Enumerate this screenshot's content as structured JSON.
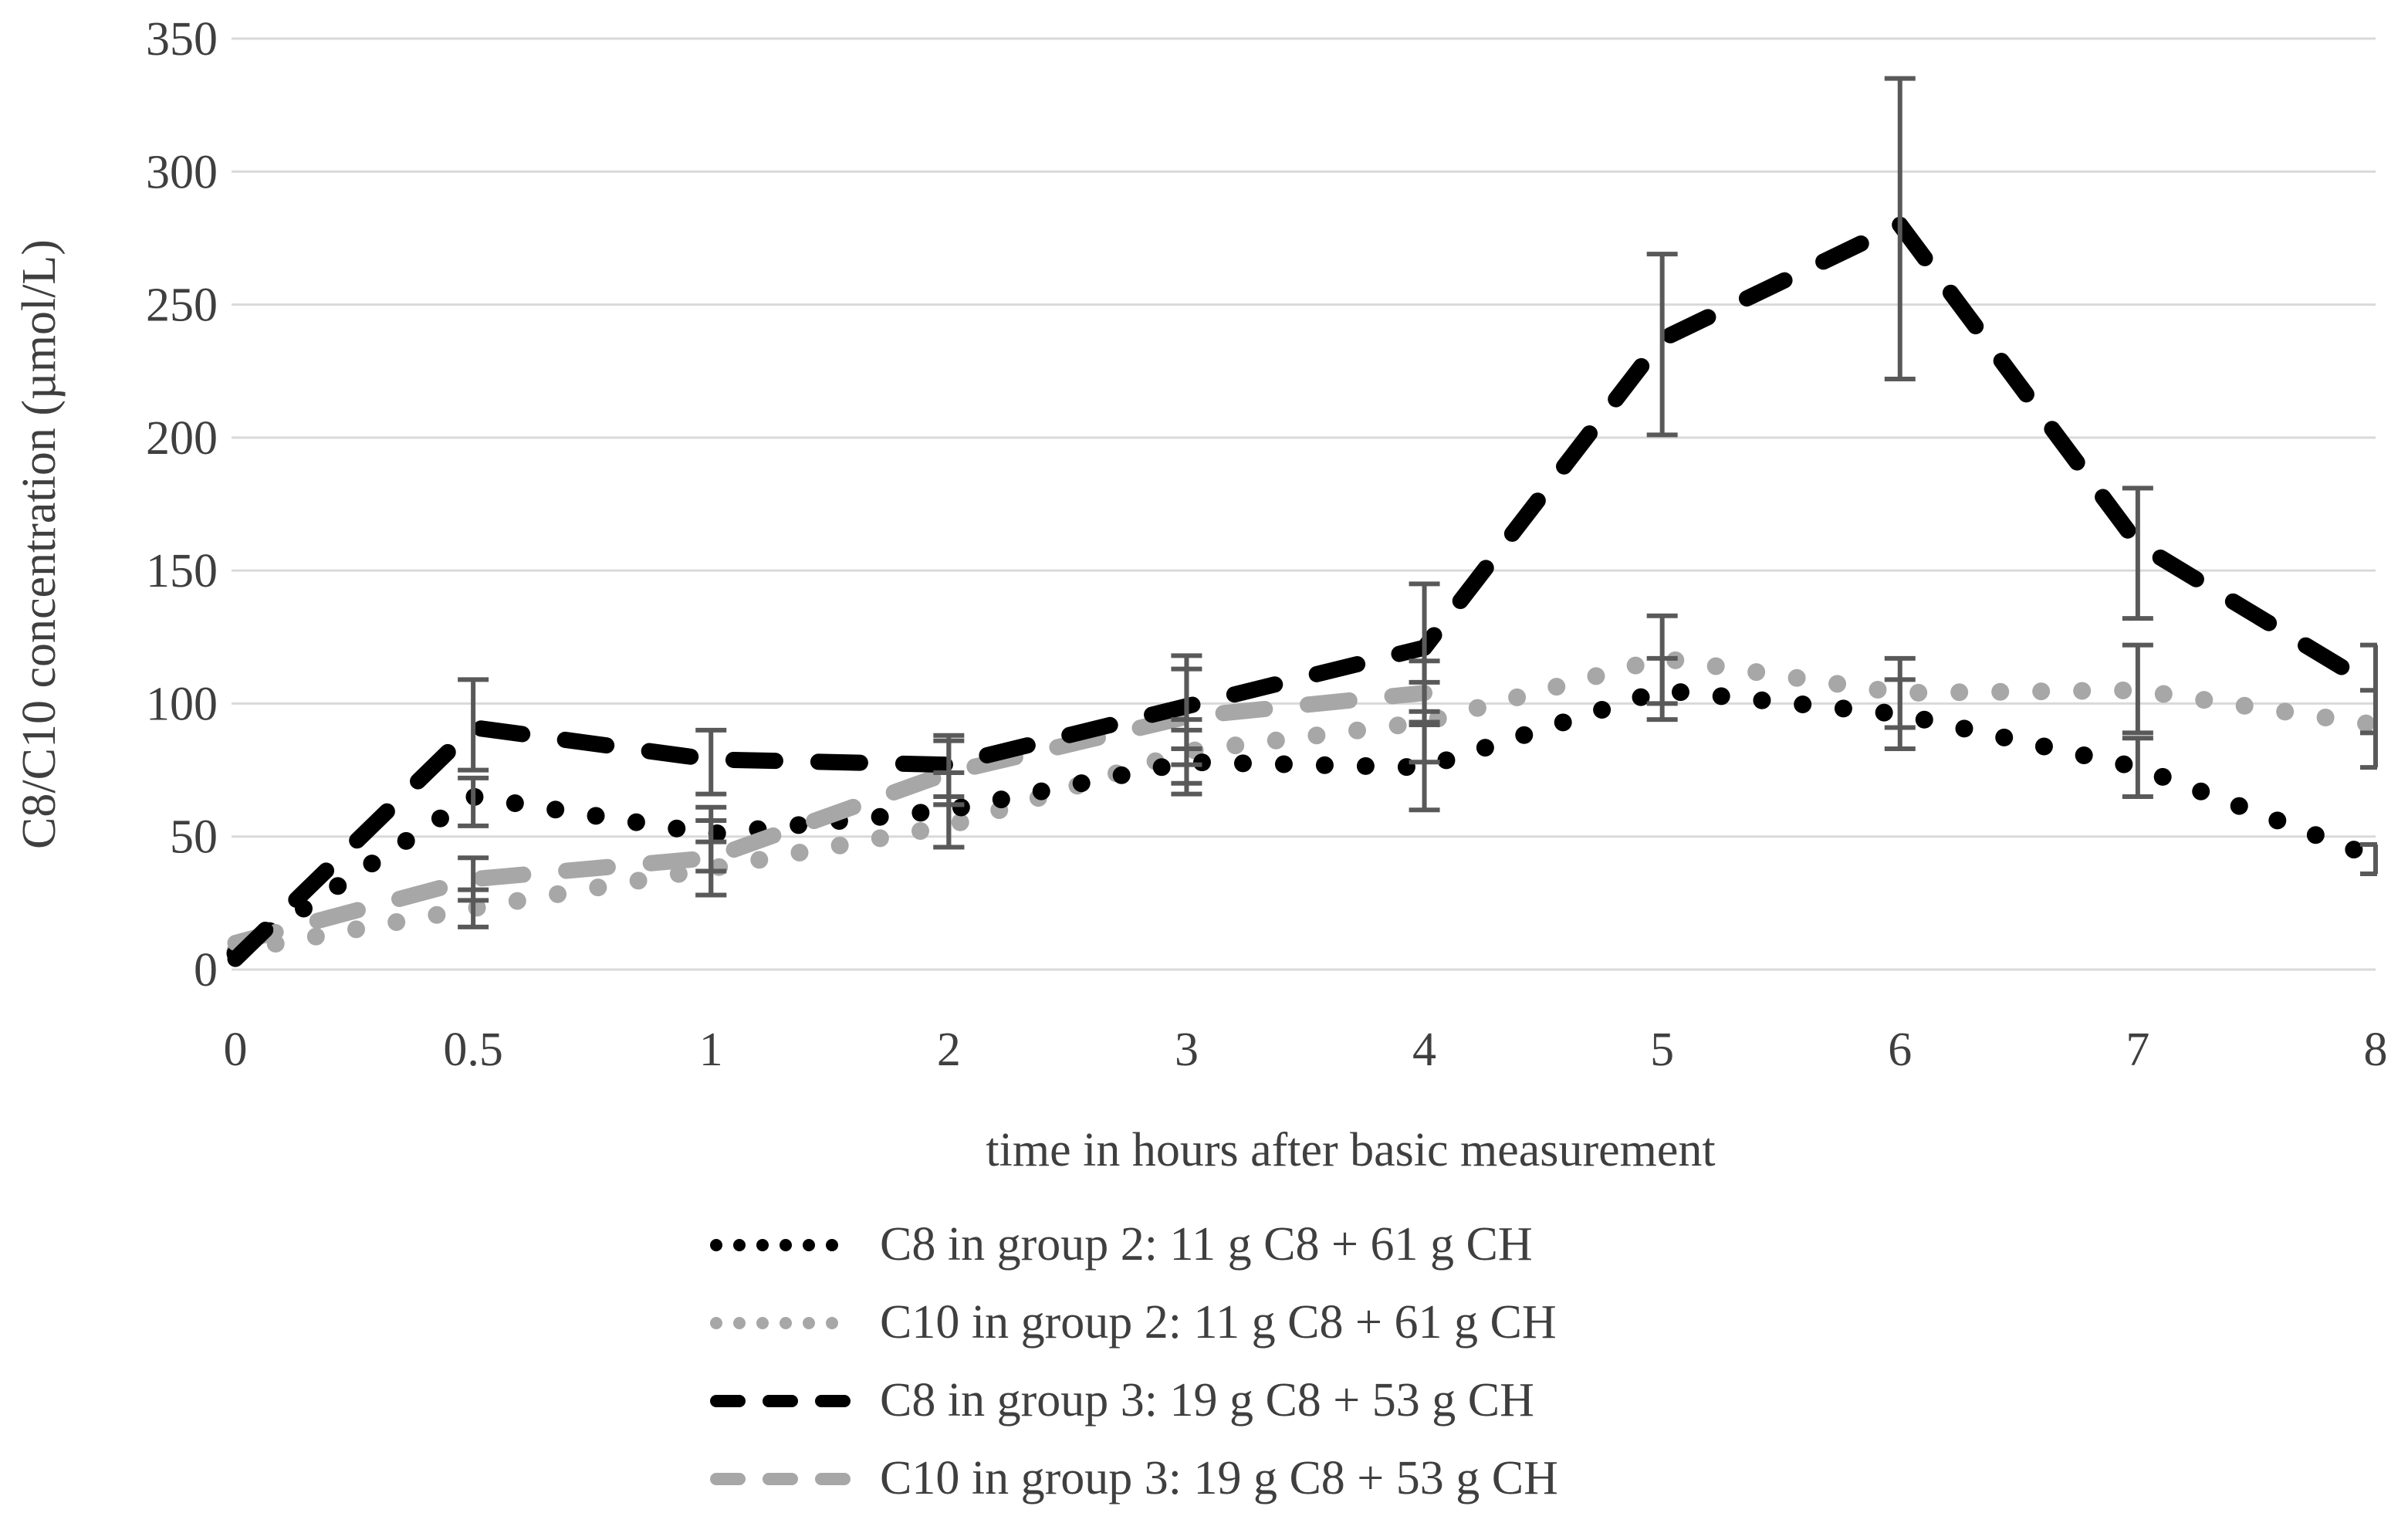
{
  "figure": {
    "y_axis_title": "C8/C10 concentration (µmol/L)",
    "x_axis_title": "time in hours after basic measurement"
  },
  "chart_data": {
    "type": "line",
    "title": "",
    "xlabel": "time in hours after basic measurement",
    "ylabel": "C8/C10 concentration (µmol/L)",
    "x_categories": [
      "0",
      "0.5",
      "1",
      "2",
      "3",
      "4",
      "5",
      "6",
      "7",
      "8"
    ],
    "y_axis": {
      "min": 0,
      "max": 350,
      "step": 50,
      "ticks": [
        "0",
        "50",
        "100",
        "150",
        "200",
        "250",
        "300",
        "350"
      ]
    },
    "grid": true,
    "legend_position": "bottom-left",
    "error_bars": true,
    "colors": {
      "black_series": "#000000",
      "gray_series": "#a7a7a7",
      "error_bar": "#595959",
      "gridline": "#d9d9d9",
      "text": "#3f3f3f",
      "background": "#ffffff"
    },
    "series": [
      {
        "name": "c8-group-2",
        "label": "C8 in group 2: 11 g C8 + 61 g CH",
        "color": "#000000",
        "pattern": "dot",
        "values": [
          6,
          65,
          51,
          60,
          78,
          76,
          105,
          96,
          76,
          42
        ],
        "err_plus": [
          0,
          7,
          10,
          14,
          12,
          17,
          12,
          13,
          11,
          5
        ],
        "err_minus": [
          0,
          11,
          14,
          14,
          12,
          16,
          11,
          13,
          11,
          6
        ]
      },
      {
        "name": "c10-group-2",
        "label": "C10 in group 2: 11 g C8 + 61 g CH",
        "color": "#a7a7a7",
        "pattern": "dot",
        "values": [
          7,
          23,
          38,
          54,
          82,
          93,
          117,
          104,
          105,
          92
        ],
        "err_plus": [
          0,
          7,
          10,
          8,
          12,
          15,
          16,
          13,
          17,
          13
        ],
        "err_minus": [
          0,
          7,
          10,
          8,
          12,
          15,
          17,
          13,
          16,
          16
        ]
      },
      {
        "name": "c8-group-3",
        "label": "C8 in group 3: 19 g C8 + 53 g CH",
        "color": "#000000",
        "pattern": "dash",
        "values": [
          4,
          91,
          79,
          77,
          99,
          121,
          237,
          280,
          160,
          106
        ],
        "err_plus": [
          0,
          18,
          11,
          11,
          19,
          24,
          32,
          55,
          21,
          16
        ],
        "err_minus": [
          0,
          16,
          13,
          12,
          16,
          24,
          36,
          58,
          28,
          17
        ]
      },
      {
        "name": "c10-group-3",
        "label": "C10 in group 3: 19 g C8 + 53 g CH",
        "color": "#a7a7a7",
        "pattern": "dash",
        "values": [
          10,
          34,
          42,
          74,
          95,
          104,
          null,
          null,
          null,
          null
        ],
        "err_plus": [
          0,
          8,
          14,
          12,
          18,
          12,
          0,
          0,
          0,
          0
        ],
        "err_minus": [
          0,
          8,
          14,
          12,
          18,
          12,
          0,
          0,
          0,
          0
        ]
      }
    ]
  }
}
